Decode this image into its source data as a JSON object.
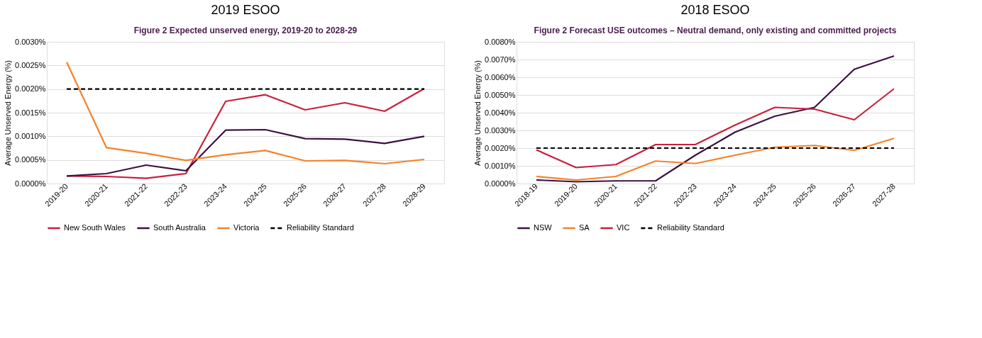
{
  "chart_data": [
    {
      "type": "line",
      "title": "2019 ESOO",
      "subtitle": "Figure 2   Expected unserved energy, 2019-20 to 2028-29",
      "ylabel": "Average Unserved Energy (%)",
      "categories": [
        "2019-20",
        "2020-21",
        "2021-22",
        "2022-23",
        "2023-24",
        "2024-25",
        "2025-26",
        "2026-27",
        "2027-28",
        "2028-29"
      ],
      "series": [
        {
          "name": "New South Wales",
          "color": "#c8203f",
          "values": [
            0.00016,
            0.00015,
            0.00011,
            0.00021,
            0.00174,
            0.00188,
            0.00156,
            0.00171,
            0.00153,
            0.00201
          ]
        },
        {
          "name": "South Australia",
          "color": "#3b1240",
          "values": [
            0.00016,
            0.00021,
            0.00039,
            0.00027,
            0.00113,
            0.00114,
            0.00095,
            0.00094,
            0.00085,
            0.001
          ]
        },
        {
          "name": "Victoria",
          "color": "#f5822a",
          "values": [
            0.00257,
            0.00076,
            0.00064,
            0.00049,
            0.00061,
            0.0007,
            0.00048,
            0.00049,
            0.00042,
            0.00051
          ]
        },
        {
          "name": "Reliability Standard",
          "color": "#000000",
          "line_style": "dashed",
          "values": [
            0.002,
            0.002,
            0.002,
            0.002,
            0.002,
            0.002,
            0.002,
            0.002,
            0.002,
            0.002
          ]
        }
      ],
      "ylim": [
        0,
        0.003
      ],
      "yticks": [
        {
          "value": 0,
          "label": "0.0000%"
        },
        {
          "value": 0.0005,
          "label": "0.0005%"
        },
        {
          "value": 0.001,
          "label": "0.0010%"
        },
        {
          "value": 0.0015,
          "label": "0.0015%"
        },
        {
          "value": 0.002,
          "label": "0.0020%"
        },
        {
          "value": 0.0025,
          "label": "0.0025%"
        },
        {
          "value": 0.003,
          "label": "0.0030%"
        }
      ],
      "grid": "y",
      "legend": "bottom",
      "marker": "none",
      "line_style": "solid"
    },
    {
      "type": "line",
      "title": "2018 ESOO",
      "subtitle": "Figure 2   Forecast USE outcomes – Neutral demand, only existing and committed projects",
      "ylabel": "Average Unserved Energy (%)",
      "categories": [
        "2018-19",
        "2019-20",
        "2020-21",
        "2021-22",
        "2022-23",
        "2023-24",
        "2024-25",
        "2025-26",
        "2026-27",
        "2027-28"
      ],
      "series": [
        {
          "name": "NSW",
          "color": "#3b1240",
          "values": [
            0.0002,
            0.0001,
            0.00015,
            0.00015,
            0.0016,
            0.0029,
            0.0038,
            0.0043,
            0.00645,
            0.0072
          ]
        },
        {
          "name": "SA",
          "color": "#f5822a",
          "values": [
            0.0004,
            0.0002,
            0.0004,
            0.00127,
            0.00113,
            0.0016,
            0.00205,
            0.00215,
            0.00187,
            0.00255
          ]
        },
        {
          "name": "VIC",
          "color": "#c8203f",
          "values": [
            0.0019,
            0.0009,
            0.00107,
            0.0022,
            0.0022,
            0.0033,
            0.0043,
            0.0042,
            0.0036,
            0.00535
          ]
        },
        {
          "name": "Reliability Standard",
          "color": "#000000",
          "line_style": "dashed",
          "values": [
            0.002,
            0.002,
            0.002,
            0.002,
            0.002,
            0.002,
            0.002,
            0.002,
            0.002,
            0.002
          ]
        }
      ],
      "ylim": [
        0,
        0.008
      ],
      "yticks": [
        {
          "value": 0,
          "label": "0.0000%"
        },
        {
          "value": 0.001,
          "label": "0.0010%"
        },
        {
          "value": 0.002,
          "label": "0.0020%"
        },
        {
          "value": 0.003,
          "label": "0.0030%"
        },
        {
          "value": 0.004,
          "label": "0.0040%"
        },
        {
          "value": 0.005,
          "label": "0.0050%"
        },
        {
          "value": 0.006,
          "label": "0.0060%"
        },
        {
          "value": 0.007,
          "label": "0.0070%"
        },
        {
          "value": 0.008,
          "label": "0.0080%"
        }
      ],
      "grid": "y",
      "legend": "bottom",
      "marker": "none",
      "line_style": "solid"
    }
  ]
}
